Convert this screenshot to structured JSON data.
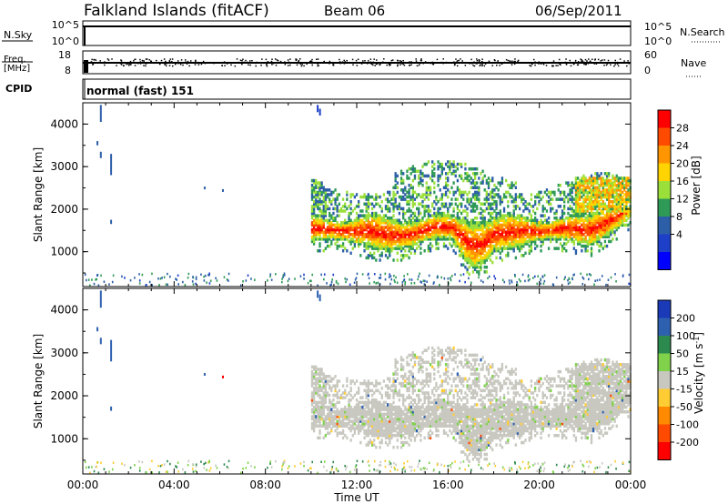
{
  "header": {
    "station": "Falkland Islands (fitACF)",
    "beam": "Beam 06",
    "date": "06/Sep/2011"
  },
  "nsky_panel": {
    "left_label": "N.Sky",
    "left_ticks": [
      "10^5",
      "10^0"
    ],
    "right_label": "N.Search",
    "right_ticks": [
      "10^5",
      "10^0"
    ]
  },
  "freq_panel": {
    "left_label_1": "Freq.",
    "left_label_2": "[MHz]",
    "left_ticks": [
      "18",
      "8"
    ],
    "right_label": "Nave",
    "right_ticks": [
      "60",
      "0"
    ]
  },
  "cpid_panel": {
    "label": "CPID",
    "mode_text": "normal (fast) 151"
  },
  "chart_data": [
    {
      "type": "heatmap",
      "title": "",
      "xlabel": "Time UT",
      "ylabel": "Slant Range [km]",
      "xlim": [
        "00:00",
        "24:00"
      ],
      "ylim": [
        180,
        4500
      ],
      "x_ticks": [
        "00:00",
        "04:00",
        "08:00",
        "12:00",
        "16:00",
        "20:00",
        "00:00"
      ],
      "y_ticks": [
        1000,
        2000,
        3000,
        4000
      ],
      "colorbar": {
        "label": "Power [dB]",
        "ticks": [
          "28",
          "24",
          "20",
          "16",
          "12",
          "8",
          "4"
        ],
        "colors": [
          "#ff0000",
          "#ff4a00",
          "#ff9600",
          "#ffd400",
          "#9be03a",
          "#2f9a57",
          "#2c5fa8",
          "#1e3fc8",
          "#0000ff"
        ]
      }
    },
    {
      "type": "heatmap",
      "title": "",
      "xlabel": "Time UT",
      "ylabel": "Slant Range [km]",
      "xlim": [
        "00:00",
        "24:00"
      ],
      "ylim": [
        180,
        4500
      ],
      "x_ticks": [
        "00:00",
        "04:00",
        "08:00",
        "12:00",
        "16:00",
        "20:00",
        "00:00"
      ],
      "y_ticks": [
        1000,
        2000,
        3000,
        4000
      ],
      "colorbar": {
        "label": "Velocity [m s^-1]",
        "ticks": [
          "200",
          "100",
          "50",
          "15",
          "-15",
          "-50",
          "-100",
          "-200"
        ],
        "colors": [
          "#1a3ab8",
          "#2e60b0",
          "#2d8a4e",
          "#7fd24a",
          "#c8c8c0",
          "#ffcc33",
          "#ff8a00",
          "#ff4a00",
          "#ff0000"
        ]
      }
    }
  ]
}
